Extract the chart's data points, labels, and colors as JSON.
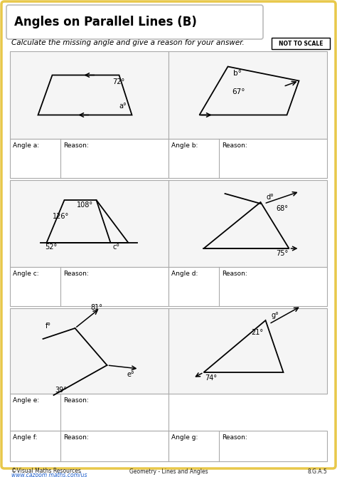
{
  "title": "Angles on Parallel Lines (B)",
  "subtitle": "Calculate the missing angle and give a reason for your answer.",
  "not_to_scale": "NOT TO SCALE",
  "footer_left1": "©Visual Maths Resources",
  "footer_left2": "www.cazoom maths.com/us",
  "footer_center": "Geometry - Lines and Angles",
  "footer_right": "8.G.A.5",
  "bg_color": "#ffffff",
  "border_color": "#e8c84a",
  "grid_color": "#aaaaaa"
}
